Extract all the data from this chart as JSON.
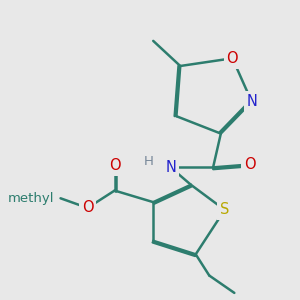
{
  "bg_color": "#e8e8e8",
  "bond_color": "#2d7d6e",
  "bond_lw": 1.8,
  "dbo": 0.018,
  "atom_colors": {
    "N": "#2222cc",
    "O": "#cc0000",
    "S": "#b8a800",
    "H": "#778899"
  },
  "figsize": [
    3.0,
    3.0
  ],
  "dpi": 100,
  "xlim": [
    0.5,
    3.5
  ],
  "ylim": [
    0.3,
    3.3
  ]
}
